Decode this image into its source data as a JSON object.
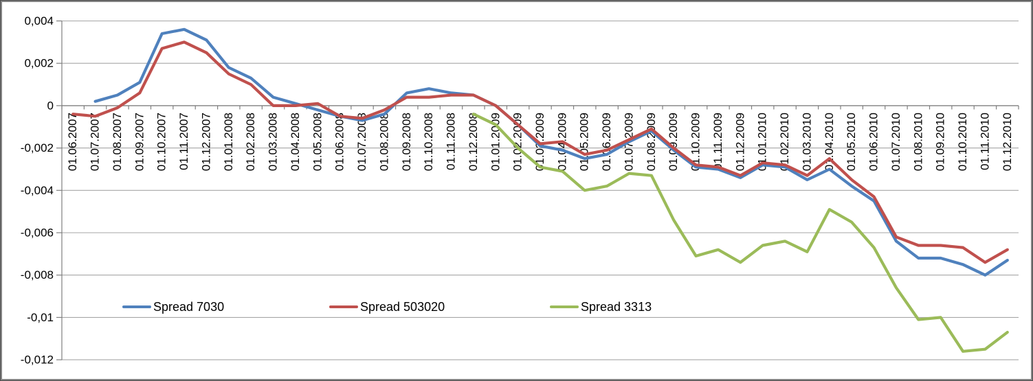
{
  "chart_data": {
    "type": "line",
    "title": "",
    "xlabel": "",
    "ylabel": "",
    "grid": true,
    "decimal_separator": ",",
    "x": [
      "01.06.2007",
      "01.07.2007",
      "01.08.2007",
      "01.09.2007",
      "01.10.2007",
      "01.11.2007",
      "01.12.2007",
      "01.01.2008",
      "01.02.2008",
      "01.03.2008",
      "01.04.2008",
      "01.05.2008",
      "01.06.2008",
      "01.07.2008",
      "01.08.2008",
      "01.09.2008",
      "01.10.2008",
      "01.11.2008",
      "01.12.2008",
      "01.01.2009",
      "01.02.2009",
      "01.03.2009",
      "01.04.2009",
      "01.05.2009",
      "01.06.2009",
      "01.07.2009",
      "01.08.2009",
      "01.09.2009",
      "01.10.2009",
      "01.11.2009",
      "01.12.2009",
      "01.01.2010",
      "01.02.2010",
      "01.03.2010",
      "01.04.2010",
      "01.05.2010",
      "01.06.2010",
      "01.07.2010",
      "01.08.2010",
      "01.09.2010",
      "01.10.2010",
      "01.11.2010",
      "01.12.2010"
    ],
    "y_axis": {
      "min": -0.012,
      "max": 0.004,
      "step": 0.002,
      "tick_values": [
        0.004,
        0.002,
        0,
        -0.002,
        -0.004,
        -0.006,
        -0.008,
        -0.01,
        -0.012
      ],
      "tick_labels": [
        "0,004",
        "0,002",
        "0",
        "-0,002",
        "-0,004",
        "-0,006",
        "-0,008",
        "-0,01",
        "-0,012"
      ]
    },
    "legend_position": "inside-bottom-left",
    "series": [
      {
        "name": "Spread 7030",
        "color": "#4F81BD",
        "values": [
          null,
          0.0002,
          0.0005,
          0.0011,
          0.0034,
          0.0036,
          0.0031,
          0.0018,
          0.0013,
          0.0004,
          0.0001,
          -0.0002,
          -0.0005,
          -0.0007,
          -0.0004,
          0.0006,
          0.0008,
          0.0006,
          0.0005,
          0,
          -0.0009,
          -0.0019,
          -0.0021,
          -0.0025,
          -0.0023,
          -0.0017,
          -0.0012,
          -0.0021,
          -0.0029,
          -0.003,
          -0.0034,
          -0.0028,
          -0.0029,
          -0.0035,
          -0.003,
          -0.0038,
          -0.0045,
          -0.0064,
          -0.0072,
          -0.0072,
          -0.0075,
          -0.008,
          -0.0073
        ]
      },
      {
        "name": "Spread 503020",
        "color": "#C0504D",
        "values": [
          -0.0004,
          -0.0005,
          -0.0001,
          0.0006,
          0.0027,
          0.003,
          0.0025,
          0.0015,
          0.001,
          0,
          0,
          0.0001,
          -0.0005,
          -0.0006,
          -0.0002,
          0.0004,
          0.0004,
          0.0005,
          0.0005,
          0,
          -0.0009,
          -0.0018,
          -0.0017,
          -0.0023,
          -0.0021,
          -0.0016,
          -0.0011,
          -0.002,
          -0.0028,
          -0.0029,
          -0.0033,
          -0.0027,
          -0.0028,
          -0.0033,
          -0.0025,
          -0.0035,
          -0.0043,
          -0.0062,
          -0.0066,
          -0.0066,
          -0.0067,
          -0.0074,
          -0.0068
        ]
      },
      {
        "name": "Spread 3313",
        "color": "#9BBB59",
        "values": [
          null,
          null,
          null,
          null,
          null,
          null,
          null,
          null,
          null,
          null,
          null,
          null,
          null,
          null,
          null,
          null,
          null,
          null,
          -0.0004,
          -0.0009,
          -0.002,
          -0.0029,
          -0.0031,
          -0.004,
          -0.0038,
          -0.0032,
          -0.0033,
          -0.0054,
          -0.0071,
          -0.0068,
          -0.0074,
          -0.0066,
          -0.0064,
          -0.0069,
          -0.0049,
          -0.0055,
          -0.0067,
          -0.0086,
          -0.0101,
          -0.01,
          -0.0116,
          -0.0115,
          -0.0107
        ]
      }
    ]
  },
  "colors": {
    "background": "#FFFFFF",
    "gridline": "#A6A6A6",
    "axis": "#7F7F7F",
    "frame": "#808080",
    "text": "#000000"
  }
}
